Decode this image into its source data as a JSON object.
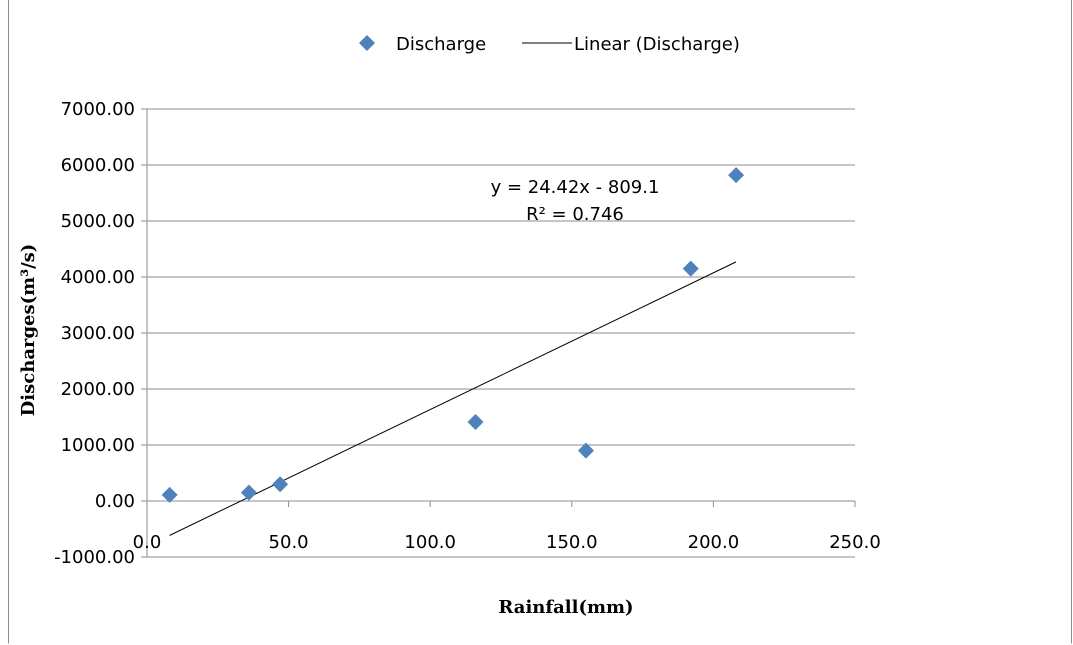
{
  "chart_data": {
    "type": "scatter",
    "xlabel": "Rainfall(mm)",
    "ylabel": "Discharges(m³/s)",
    "xlim": [
      0,
      250
    ],
    "ylim": [
      -1000,
      7000
    ],
    "x_ticks": [
      0,
      50,
      100,
      150,
      200,
      250
    ],
    "x_tick_labels": [
      "0.0",
      "50.0",
      "100.0",
      "150.0",
      "200.0",
      "250.0"
    ],
    "y_ticks": [
      -1000,
      0,
      1000,
      2000,
      3000,
      4000,
      5000,
      6000,
      7000
    ],
    "y_tick_labels": [
      "-1000.00",
      "0.00",
      "1000.00",
      "2000.00",
      "3000.00",
      "4000.00",
      "5000.00",
      "6000.00",
      "7000.00"
    ],
    "grid": "horizontal",
    "legend_position": "top",
    "series": [
      {
        "name": "Discharge",
        "marker": "diamond",
        "color": "#4f81bd",
        "points": [
          {
            "x": 8,
            "y": 110
          },
          {
            "x": 36,
            "y": 150
          },
          {
            "x": 47,
            "y": 300
          },
          {
            "x": 116,
            "y": 1410
          },
          {
            "x": 155,
            "y": 900
          },
          {
            "x": 192,
            "y": 4150
          },
          {
            "x": 208,
            "y": 5820
          }
        ]
      }
    ],
    "trendline": {
      "name": "Linear (Discharge)",
      "type": "linear",
      "slope": 24.42,
      "intercept": -809.1,
      "x_range": [
        8,
        208
      ],
      "color": "#000000",
      "equation": "y = 24.42x - 809.1",
      "r_squared": "R² = 0.746"
    }
  }
}
